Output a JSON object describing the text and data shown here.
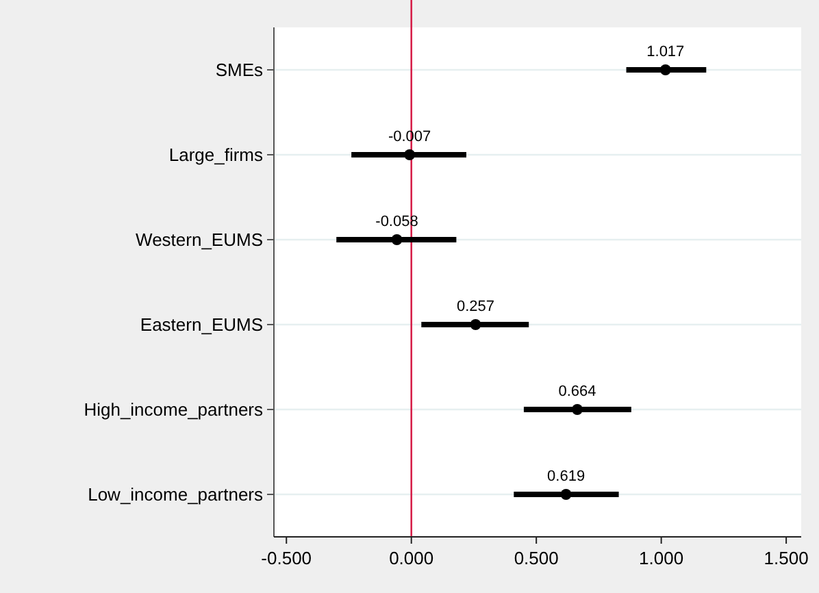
{
  "chart_data": {
    "type": "scatter",
    "orientation": "horizontal",
    "categories": [
      "SMEs",
      "Large_firms",
      "Western_EUMS",
      "Eastern_EUMS",
      "High_income_partners",
      "Low_income_partners"
    ],
    "values": [
      1.017,
      -0.007,
      -0.058,
      0.257,
      0.664,
      0.619
    ],
    "value_labels": [
      "1.017",
      "-0.007",
      "-0.058",
      "0.257",
      "0.664",
      "0.619"
    ],
    "errors": [
      [
        0.86,
        1.18
      ],
      [
        -0.24,
        0.22
      ],
      [
        -0.3,
        0.18
      ],
      [
        0.04,
        0.47
      ],
      [
        0.45,
        0.88
      ],
      [
        0.41,
        0.83
      ]
    ],
    "color": "#000000",
    "marker": "circle",
    "xlim": [
      -0.55,
      1.56
    ],
    "xticks": [
      {
        "value": -0.5,
        "label": "-0.500"
      },
      {
        "value": 0,
        "label": "0.000"
      },
      {
        "value": 0.5,
        "label": "0.500"
      },
      {
        "value": 1,
        "label": "1.000"
      },
      {
        "value": 1.5,
        "label": "1.500"
      }
    ],
    "grid": "y",
    "ref_lines": [
      {
        "axis": "x",
        "value": 0,
        "color": "#d6204a"
      }
    ]
  }
}
